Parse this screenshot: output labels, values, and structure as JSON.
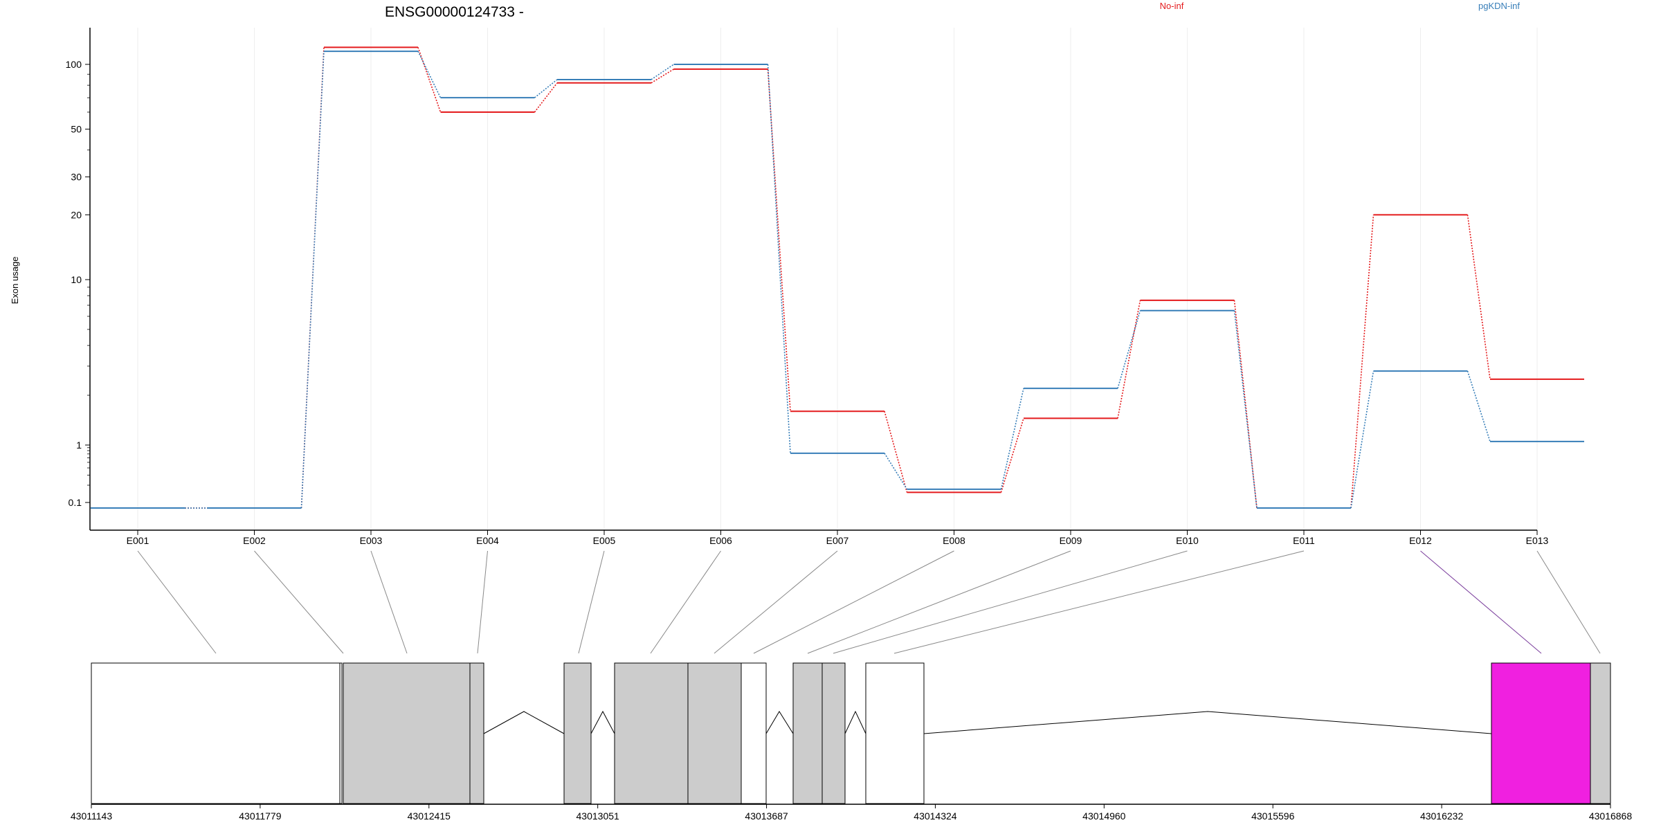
{
  "chart_data": {
    "type": "line",
    "title": "ENSG00000124733 -",
    "ylabel": "Exon usage",
    "y_scale": "log (compressed below 1)",
    "y_ticks": [
      0.1,
      1,
      10,
      20,
      30,
      50,
      100
    ],
    "y_tick_labels": [
      "0.1",
      "1",
      "10",
      "20",
      "30",
      "50",
      "100"
    ],
    "categories": [
      "E001",
      "E002",
      "E003",
      "E004",
      "E005",
      "E006",
      "E007",
      "E008",
      "E009",
      "E010",
      "E011",
      "E012",
      "E013"
    ],
    "series": [
      {
        "name": "No-inf",
        "color": "#e41a1c",
        "values": [
          0.08,
          0.08,
          120,
          60,
          82,
          95,
          1.6,
          0.15,
          1.45,
          7.5,
          0.08,
          20,
          2.5
        ]
      },
      {
        "name": "pgKDN-inf",
        "color": "#377eb8",
        "values": [
          0.08,
          0.08,
          115,
          70,
          85,
          100,
          0.72,
          0.17,
          2.2,
          6.5,
          0.08,
          2.8,
          1.05
        ]
      }
    ],
    "legend_position": "top",
    "grid": "vertical",
    "gene_model": {
      "x_tick_labels": [
        "43011143",
        "43011779",
        "43012415",
        "43013051",
        "43013687",
        "43014324",
        "43014960",
        "43015596",
        "43016232",
        "43016868"
      ],
      "highlight_color": "#f020e0",
      "exon_fill": "#cccccc",
      "highlighted_exon": "E012"
    }
  }
}
